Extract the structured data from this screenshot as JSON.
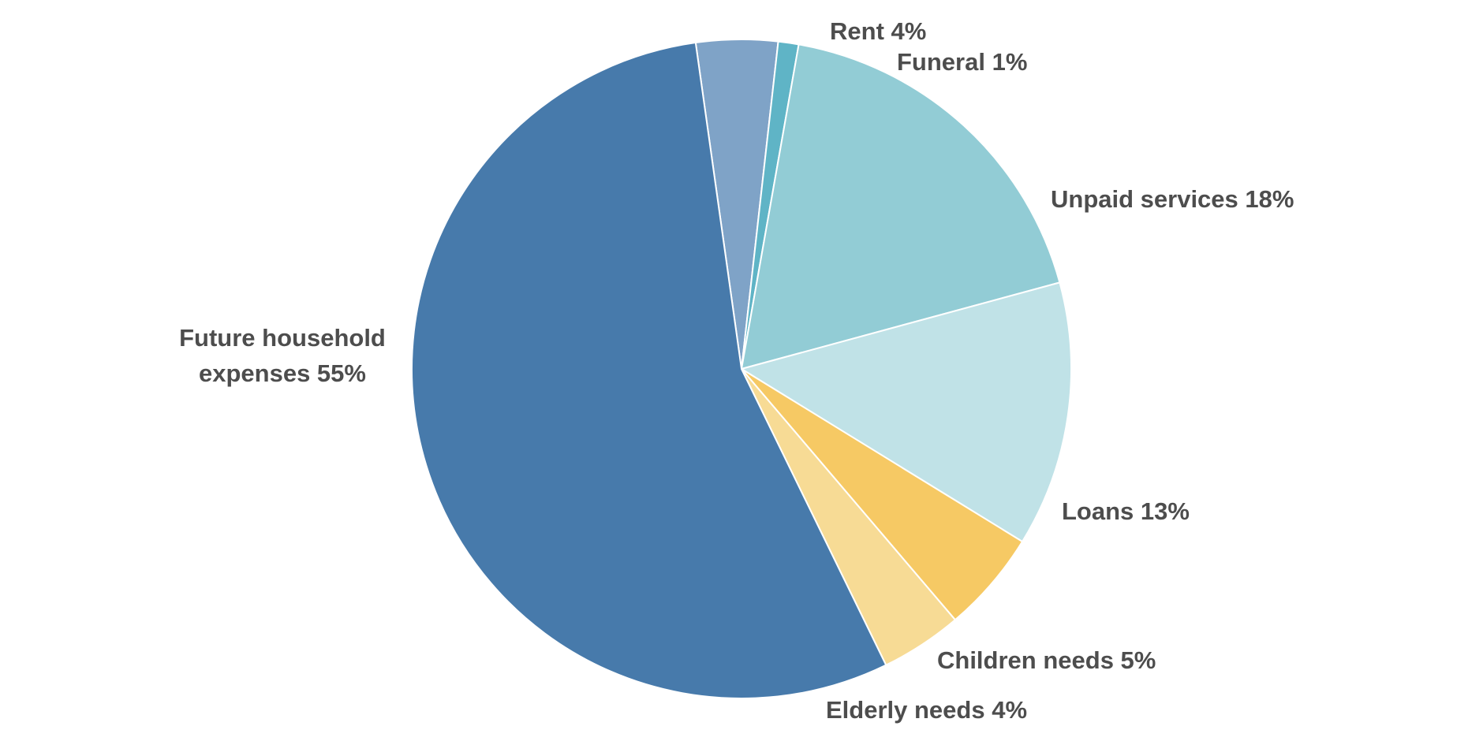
{
  "chart_data": {
    "type": "pie",
    "slices": [
      {
        "name": "rent",
        "label": "Rent 4%",
        "value": 4,
        "color": "#7fa3c7"
      },
      {
        "name": "funeral",
        "label": "Funeral 1%",
        "value": 1,
        "color": "#5fb4c6"
      },
      {
        "name": "unpaid-services",
        "label": "Unpaid services 18%",
        "value": 18,
        "color": "#92ccd5"
      },
      {
        "name": "loans",
        "label": "Loans 13%",
        "value": 13,
        "color": "#c0e2e7"
      },
      {
        "name": "children-needs",
        "label": "Children needs 5%",
        "value": 5,
        "color": "#f6c964"
      },
      {
        "name": "elderly-needs",
        "label": "Elderly needs 4%",
        "value": 4,
        "color": "#f7db95"
      },
      {
        "name": "future-household-expenses",
        "label": [
          "Future household",
          "expenses 55%"
        ],
        "value": 55,
        "color": "#477aab"
      }
    ]
  }
}
